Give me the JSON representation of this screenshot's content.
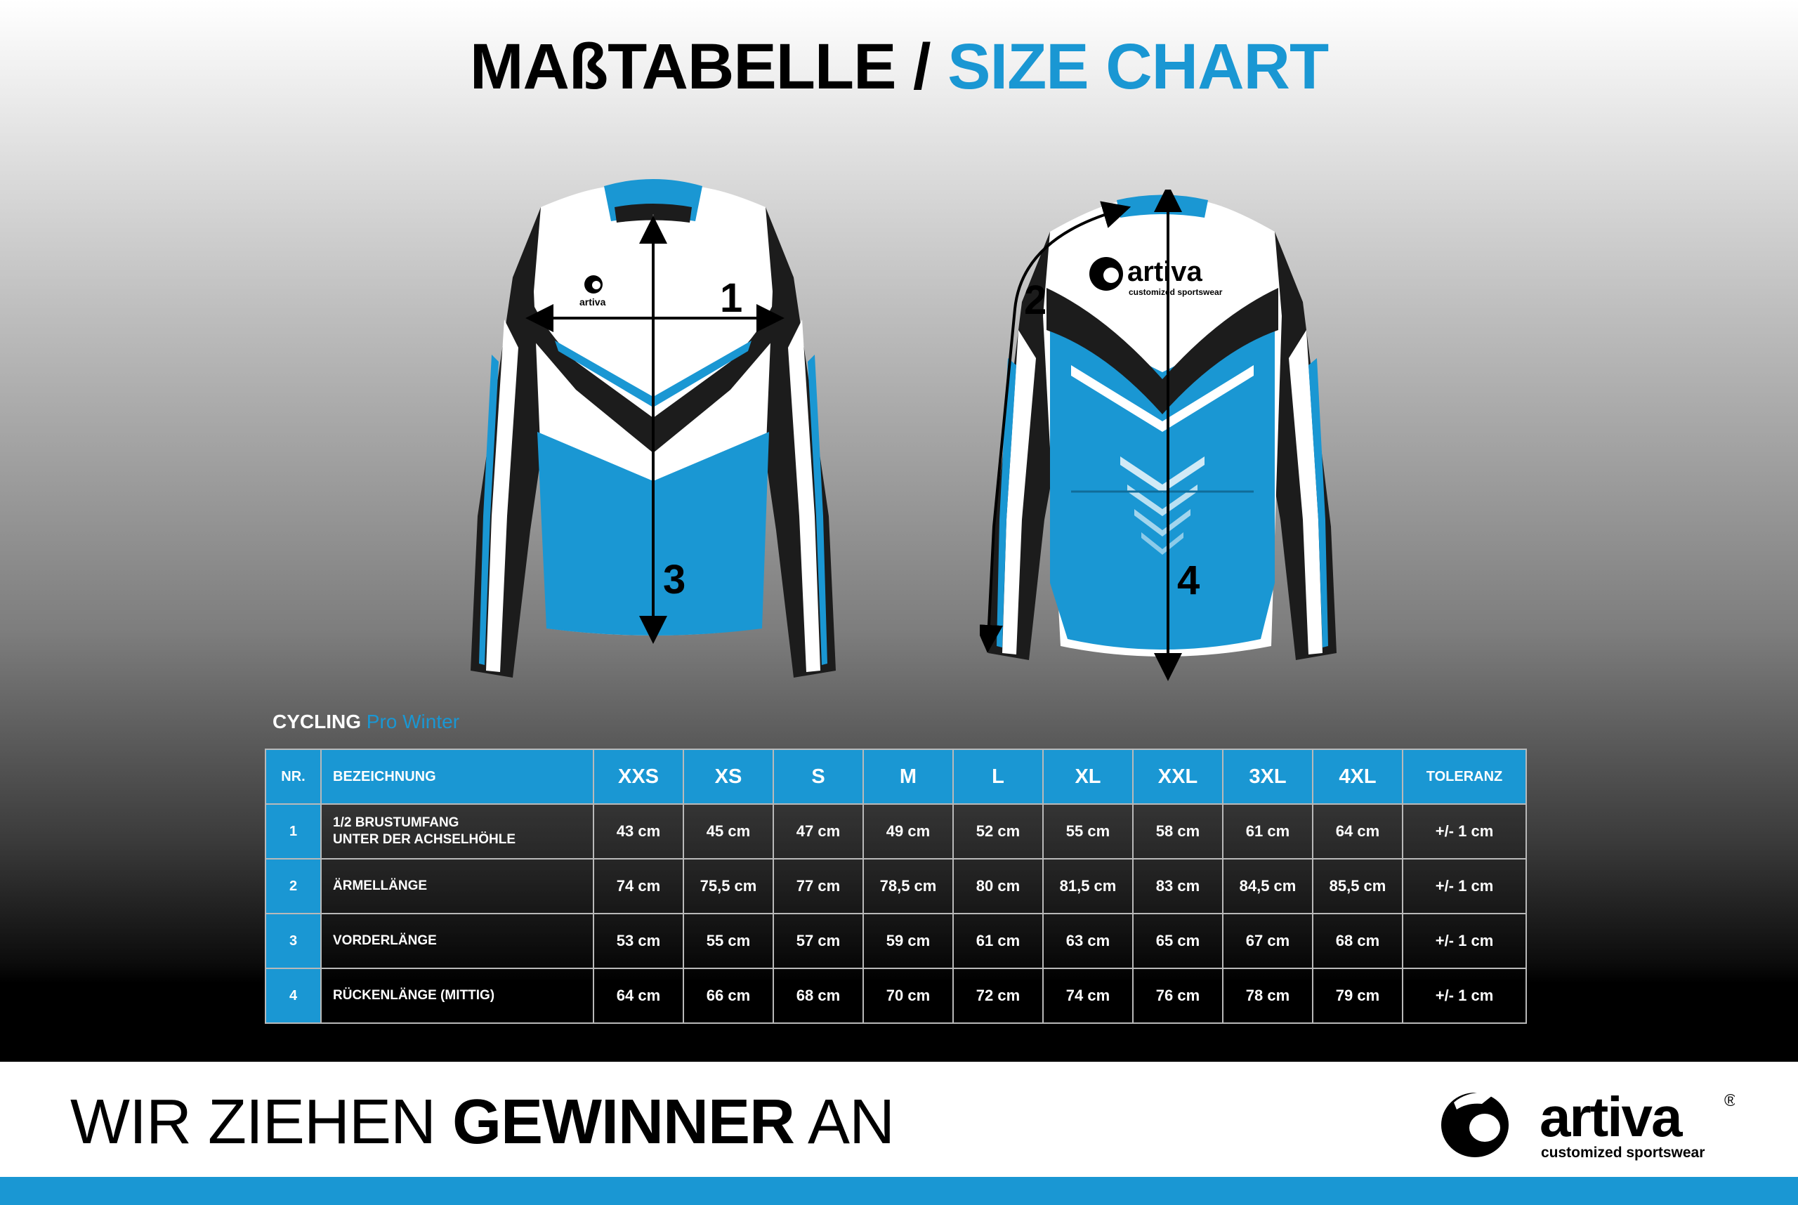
{
  "header": {
    "title_de": "MAßTABELLE",
    "separator": "/",
    "title_en": "SIZE CHART"
  },
  "jersey_logo": {
    "front_brand": "artiva",
    "back_brand": "artiva",
    "back_tagline": "customized sportswear"
  },
  "measure_labels": [
    "1",
    "2",
    "3",
    "4"
  ],
  "table": {
    "title_part1": "CYCLING",
    "title_part2": "Pro Winter",
    "headers": [
      "NR.",
      "BEZEICHNUNG",
      "XXS",
      "XS",
      "S",
      "M",
      "L",
      "XL",
      "XXL",
      "3XL",
      "4XL",
      "TOLERANZ"
    ],
    "rows": [
      {
        "nr": "1",
        "desc_line1": "1/2 BRUSTUMFANG",
        "desc_line2": "UNTER DER ACHSELHÖHLE",
        "values": [
          "43 cm",
          "45 cm",
          "47 cm",
          "49 cm",
          "52 cm",
          "55 cm",
          "58 cm",
          "61 cm",
          "64 cm"
        ],
        "tolerance": "+/- 1 cm"
      },
      {
        "nr": "2",
        "desc_line1": "ÄRMELLÄNGE",
        "desc_line2": "",
        "values": [
          "74 cm",
          "75,5 cm",
          "77 cm",
          "78,5 cm",
          "80 cm",
          "81,5 cm",
          "83 cm",
          "84,5 cm",
          "85,5 cm"
        ],
        "tolerance": "+/- 1 cm"
      },
      {
        "nr": "3",
        "desc_line1": "VORDERLÄNGE",
        "desc_line2": "",
        "values": [
          "53 cm",
          "55 cm",
          "57 cm",
          "59 cm",
          "61 cm",
          "63 cm",
          "65 cm",
          "67 cm",
          "68 cm"
        ],
        "tolerance": "+/- 1 cm"
      },
      {
        "nr": "4",
        "desc_line1": "RÜCKENLÄNGE (MITTIG)",
        "desc_line2": "",
        "values": [
          "64 cm",
          "66 cm",
          "68 cm",
          "70 cm",
          "72 cm",
          "74 cm",
          "76 cm",
          "78 cm",
          "79 cm"
        ],
        "tolerance": "+/- 1 cm"
      }
    ]
  },
  "footer": {
    "slogan_part1": "WIR ZIEHEN",
    "slogan_part2": "GEWINNER",
    "slogan_part3": "AN",
    "brand": "artiva",
    "registered": "®",
    "tagline": "customized sportswear"
  },
  "colors": {
    "accent_blue": "#1a97d3",
    "black": "#000000",
    "white": "#ffffff"
  }
}
